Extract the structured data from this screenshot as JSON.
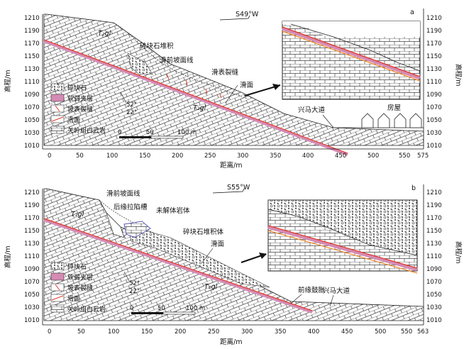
{
  "shared": {
    "y_axis_label": "高程/m",
    "x_axis_label": "距离/m",
    "y_ticks": [
      "1210",
      "1190",
      "1170",
      "1150",
      "1130",
      "1110",
      "1090",
      "1070",
      "1050",
      "1030",
      "1010"
    ],
    "formation_label": "T₂gl",
    "angle_top": "52°",
    "angle_bottom": "22°",
    "road_label": "兴马大道",
    "scale_labels": [
      "0",
      "50",
      "100 m"
    ],
    "legend": [
      {
        "label": "碎块石",
        "icon": "rubble-icon"
      },
      {
        "label": "软弱夹层",
        "icon": "weak-interlayer-icon"
      },
      {
        "label": "坡表裂缝",
        "icon": "surface-crack-icon"
      },
      {
        "label": "滑面",
        "icon": "sliding-surface-icon"
      },
      {
        "label": "关岭组白云岩",
        "icon": "dolomite-icon"
      }
    ],
    "colors": {
      "weak_layer": "#d58bb4",
      "slide_line": "#e23a2a",
      "rock_stroke": "#333333"
    }
  },
  "panel_a": {
    "tag": "a",
    "direction": "S49°W",
    "x_ticks": [
      "0",
      "50",
      "100",
      "150",
      "200",
      "250",
      "300",
      "350",
      "400",
      "450",
      "500",
      "550",
      "575"
    ],
    "annotations": {
      "rubble": "碎块石堆积",
      "pre_slope": "滑前坡面线",
      "cracks": "滑表裂缝",
      "slide": "滑面",
      "house": "房屋"
    }
  },
  "panel_b": {
    "tag": "b",
    "direction": "S55°W",
    "x_ticks": [
      "0",
      "50",
      "100",
      "150",
      "200",
      "250",
      "300",
      "350",
      "400",
      "450",
      "500",
      "550",
      "563"
    ],
    "annotations": {
      "pre_slope": "滑前坡面线",
      "trench": "后缘拉陷槽",
      "undisint": "未解体岩体",
      "rubble": "碎块石堆积体",
      "slide": "滑面",
      "bulge": "前缘鼓胀"
    }
  }
}
